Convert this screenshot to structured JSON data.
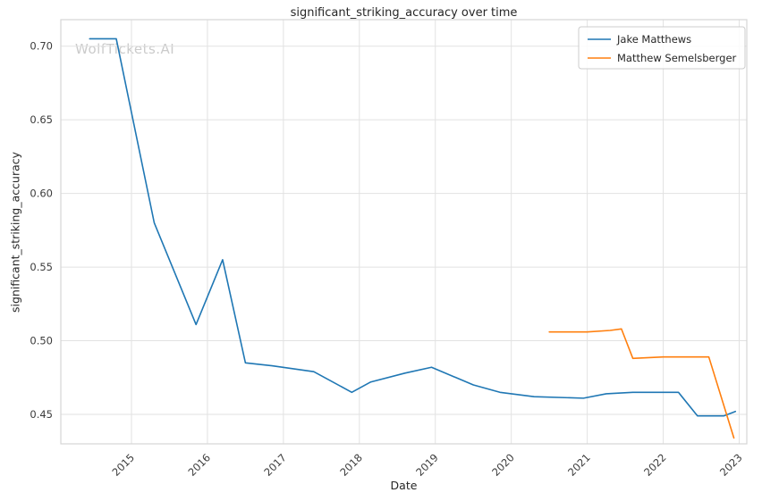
{
  "watermark": "WolfTickets.AI",
  "chart_data": {
    "type": "line",
    "title": "significant_striking_accuracy over time",
    "xlabel": "Date",
    "ylabel": "significant_striking_accuracy",
    "xlim": [
      2014.07,
      2023.1
    ],
    "ylim": [
      0.43,
      0.718
    ],
    "xticks": [
      2015,
      2016,
      2017,
      2018,
      2019,
      2020,
      2021,
      2022,
      2023
    ],
    "yticks": [
      0.45,
      0.5,
      0.55,
      0.6,
      0.65,
      0.7
    ],
    "grid": true,
    "legend_position": "upper right",
    "colors": {
      "grid": "#e2e2e2",
      "spine": "#d6d6d6",
      "text": "#262626",
      "tick_text": "#3c3c3c",
      "watermark": "#cbcbcb",
      "legend_border": "#cccccc"
    },
    "series": [
      {
        "name": "Jake Matthews",
        "color": "#1f77b4",
        "x": [
          2014.45,
          2014.8,
          2015.3,
          2015.85,
          2016.2,
          2016.5,
          2016.85,
          2017.4,
          2017.9,
          2018.15,
          2018.6,
          2018.95,
          2019.5,
          2019.85,
          2020.3,
          2020.95,
          2021.25,
          2021.6,
          2022.2,
          2022.45,
          2022.8,
          2022.95
        ],
        "y": [
          0.705,
          0.705,
          0.58,
          0.511,
          0.555,
          0.485,
          0.483,
          0.479,
          0.465,
          0.472,
          0.478,
          0.482,
          0.47,
          0.465,
          0.462,
          0.461,
          0.464,
          0.465,
          0.465,
          0.449,
          0.449,
          0.452
        ]
      },
      {
        "name": "Matthew Semelsberger",
        "color": "#ff7f0e",
        "x": [
          2020.5,
          2021.0,
          2021.3,
          2021.45,
          2021.6,
          2022.0,
          2022.45,
          2022.6,
          2022.93
        ],
        "y": [
          0.506,
          0.506,
          0.507,
          0.508,
          0.488,
          0.489,
          0.489,
          0.489,
          0.434
        ]
      }
    ]
  }
}
